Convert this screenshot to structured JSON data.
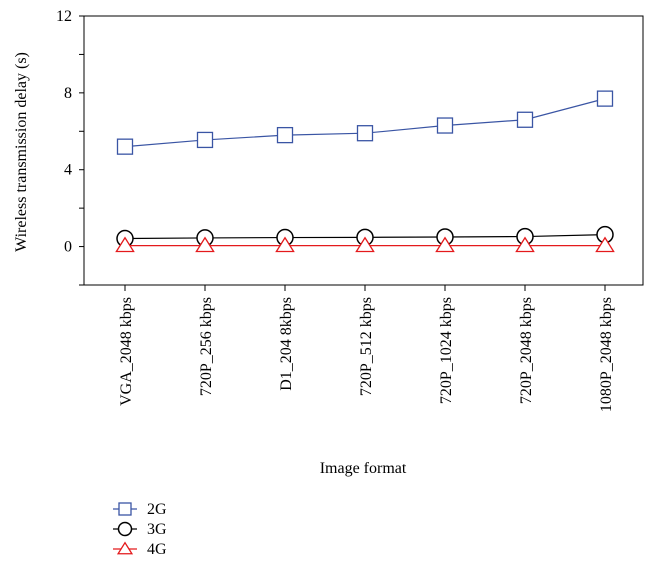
{
  "chart_data": {
    "type": "line",
    "xlabel": "Image format",
    "ylabel": "Wireless transmission delay (s)",
    "ylim": [
      -2,
      12
    ],
    "yticks": [
      0,
      4,
      8,
      12
    ],
    "grid": false,
    "legend_position": "bottom-left",
    "categories": [
      "VGA_2048 kbps",
      "720P_256 kbps",
      "D1_204 8kbps",
      "720P_512 kbps",
      "720P_1024 kbps",
      "720P_2048 kbps",
      "1080P_2048 kbps"
    ],
    "series": [
      {
        "name": "2G",
        "marker": "square",
        "color": "#3a55a4",
        "values": [
          5.2,
          5.55,
          5.8,
          5.9,
          6.3,
          6.6,
          7.7
        ]
      },
      {
        "name": "3G",
        "marker": "circle",
        "color": "#000000",
        "values": [
          0.42,
          0.45,
          0.47,
          0.48,
          0.5,
          0.52,
          0.62
        ]
      },
      {
        "name": "4G",
        "marker": "triangle",
        "color": "#e41a1c",
        "values": [
          0.05,
          0.05,
          0.05,
          0.05,
          0.05,
          0.05,
          0.05
        ]
      }
    ]
  }
}
